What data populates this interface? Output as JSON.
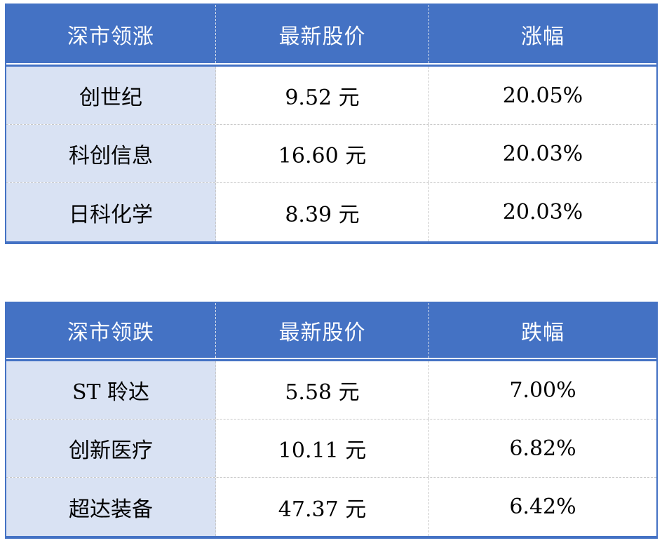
{
  "colors": {
    "header_bg": "#4472C4",
    "border_blue": "#4472C4",
    "first_col_bg": "#D9E2F3",
    "dash_gray": "#c9c9c9",
    "header_text": "#ffffff",
    "text_black": "#000000",
    "page_bg": "#ffffff"
  },
  "tables": [
    {
      "name": "shenzhen-gainers",
      "headers": [
        "深市领涨",
        "最新股价",
        "涨幅"
      ],
      "rows": [
        [
          "创世纪",
          "9.52 元",
          "20.05%"
        ],
        [
          "科创信息",
          "16.60 元",
          "20.03%"
        ],
        [
          "日科化学",
          "8.39 元",
          "20.03%"
        ]
      ]
    },
    {
      "name": "shenzhen-losers",
      "headers": [
        "深市领跌",
        "最新股价",
        "跌幅"
      ],
      "rows": [
        [
          "ST 聆达",
          "5.58 元",
          "7.00%"
        ],
        [
          "创新医疗",
          "10.11 元",
          "6.82%"
        ],
        [
          "超达装备",
          "47.37 元",
          "6.42%"
        ]
      ]
    }
  ]
}
